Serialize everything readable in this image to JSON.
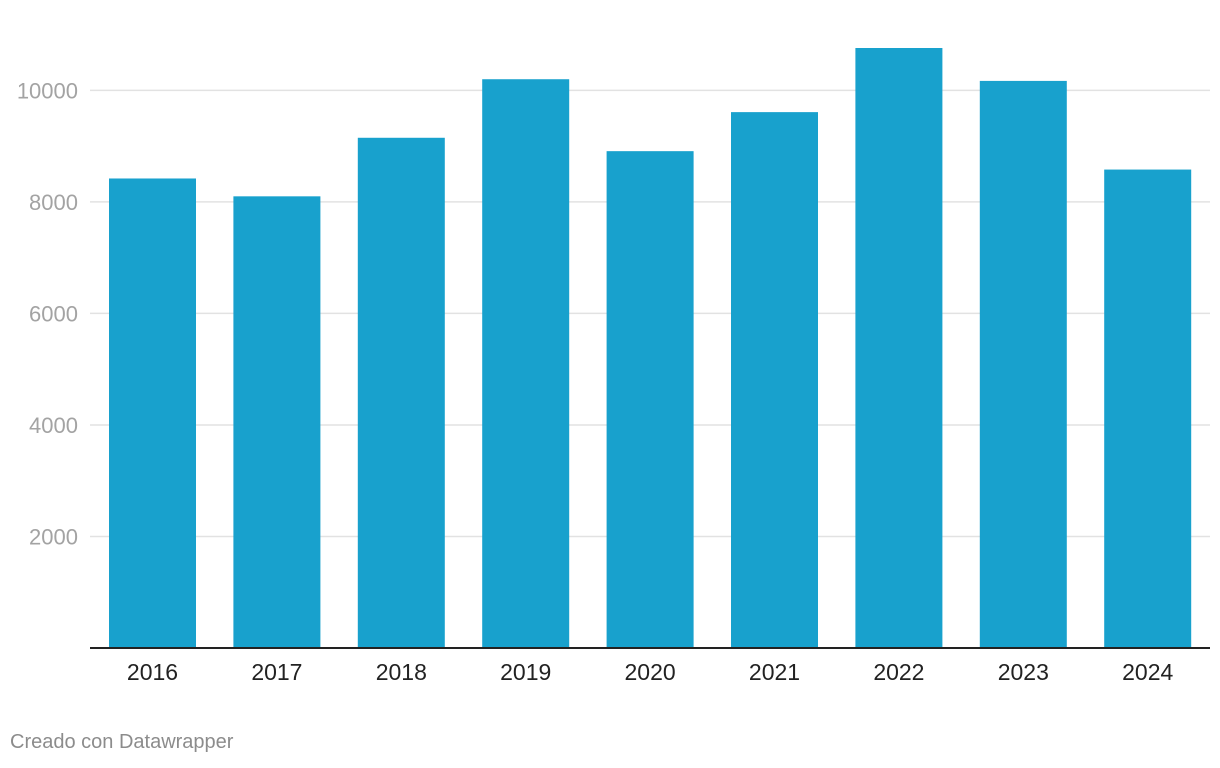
{
  "chart_data": {
    "type": "bar",
    "categories": [
      "2016",
      "2017",
      "2018",
      "2019",
      "2020",
      "2021",
      "2022",
      "2023",
      "2024"
    ],
    "values": [
      8420,
      8100,
      9150,
      10200,
      8910,
      9610,
      10760,
      10170,
      8580
    ],
    "yticks": [
      2000,
      4000,
      6000,
      8000,
      10000
    ],
    "ylim": [
      0,
      10760
    ],
    "grid": true,
    "bar_color": "#18a1cd",
    "title": "",
    "xlabel": "",
    "ylabel": ""
  },
  "footer": {
    "credit": "Creado con Datawrapper"
  }
}
